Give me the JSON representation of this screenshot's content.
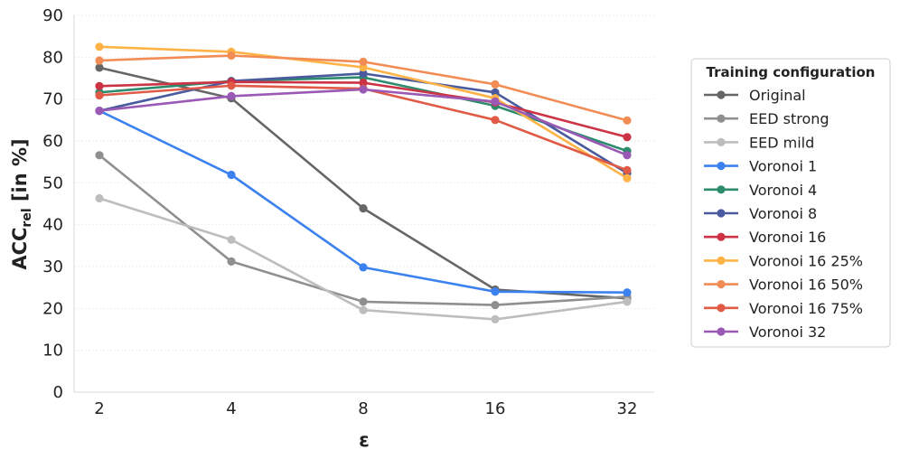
{
  "chart_data": {
    "type": "line",
    "title": "",
    "xlabel": "ε",
    "ylabel_main": "ACC",
    "ylabel_sub": "rel",
    "ylabel_suffix": " [in %]",
    "x": [
      "2",
      "4",
      "8",
      "16",
      "32"
    ],
    "ylim": [
      0,
      90
    ],
    "yticks": [
      "0",
      "10",
      "20",
      "30",
      "40",
      "50",
      "60",
      "70",
      "80",
      "90"
    ],
    "grid": true,
    "legend": {
      "title": "Training configuration",
      "position": "right"
    },
    "series": [
      {
        "name": "Original",
        "color": "#666666",
        "values": [
          77.5,
          70.2,
          43.9,
          24.5,
          22.4
        ]
      },
      {
        "name": "EED strong",
        "color": "#8f8f8f",
        "values": [
          56.6,
          31.2,
          21.6,
          20.8,
          22.8
        ]
      },
      {
        "name": "EED mild",
        "color": "#bdbdbd",
        "values": [
          46.3,
          36.4,
          19.6,
          17.4,
          21.6
        ]
      },
      {
        "name": "Voronoi 1",
        "color": "#3b82f0",
        "values": [
          67.2,
          51.9,
          29.8,
          24.0,
          23.8
        ]
      },
      {
        "name": "Voronoi 4",
        "color": "#2e8b6e",
        "values": [
          71.6,
          74.3,
          75.2,
          68.4,
          57.6
        ]
      },
      {
        "name": "Voronoi 8",
        "color": "#4a5a9e",
        "values": [
          67.2,
          74.3,
          76.1,
          71.6,
          52.3
        ]
      },
      {
        "name": "Voronoi 16",
        "color": "#cc3344",
        "values": [
          73.1,
          74.1,
          73.9,
          69.2,
          60.9
        ]
      },
      {
        "name": "Voronoi 16 25%",
        "color": "#ffb347",
        "values": [
          82.5,
          81.3,
          77.6,
          70.2,
          51.1
        ]
      },
      {
        "name": "Voronoi 16 50%",
        "color": "#f28c55",
        "values": [
          79.2,
          80.4,
          78.9,
          73.5,
          64.9
        ]
      },
      {
        "name": "Voronoi 16 75%",
        "color": "#e05a45",
        "values": [
          70.9,
          73.2,
          72.5,
          65.0,
          53.0
        ]
      },
      {
        "name": "Voronoi 32",
        "color": "#9b59b6",
        "values": [
          67.2,
          70.7,
          72.3,
          69.4,
          56.6
        ]
      }
    ]
  }
}
